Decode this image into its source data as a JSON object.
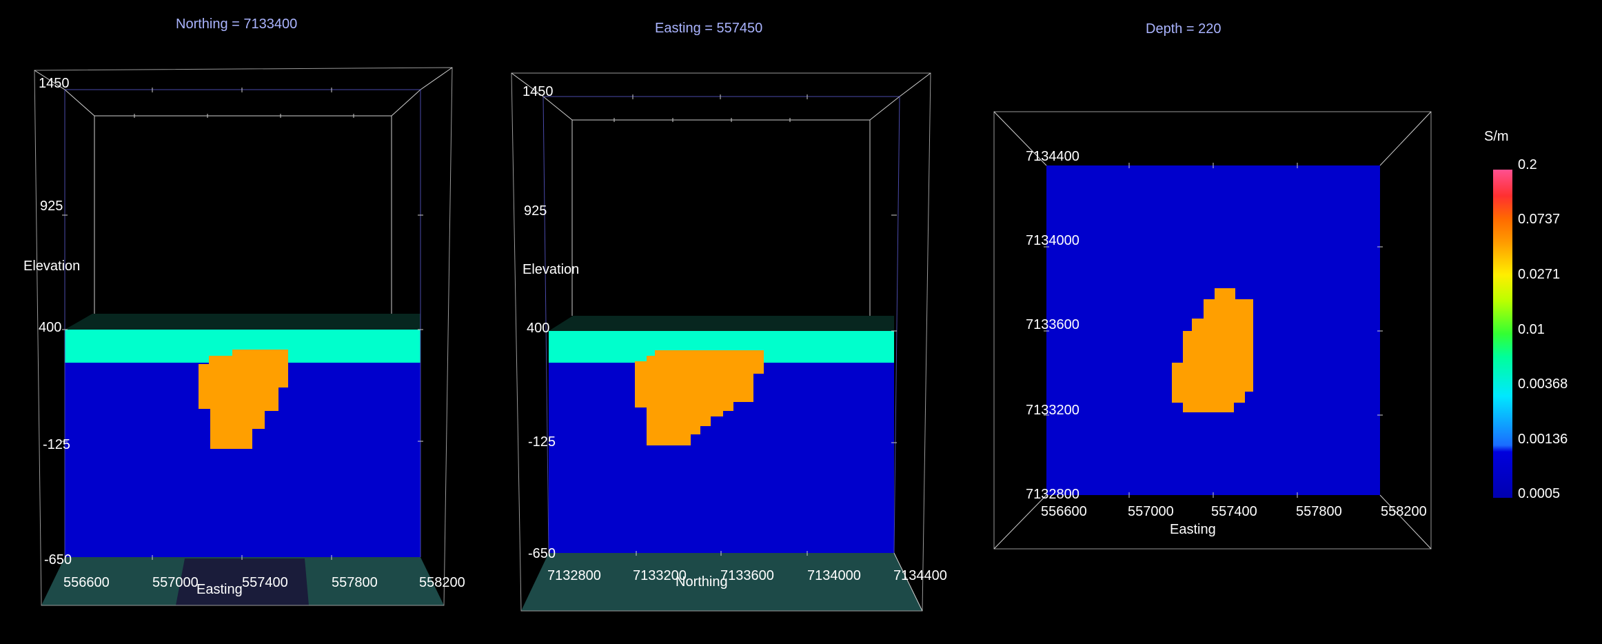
{
  "colors": {
    "background": "#000000",
    "cell_low": "#0000cc",
    "cell_surface": "#00ffcc",
    "cell_anomaly": "#ff9f00",
    "floor": "#1d4a48",
    "title_text": "#aab4ff"
  },
  "panel1": {
    "title": "Northing =  7133400",
    "elev_ticks": [
      "1450",
      "925",
      "400",
      "-125",
      "-650"
    ],
    "y_axis_label": "Elevation",
    "x_ticks": [
      "556600",
      "557000",
      "557400",
      "557800",
      "558200"
    ],
    "x_axis_label": "Easting"
  },
  "panel2": {
    "title": "Easting =  557450",
    "elev_ticks": [
      "1450",
      "925",
      "400",
      "-125",
      "-650"
    ],
    "y_axis_label": "Elevation",
    "x_ticks": [
      "7132800",
      "7133200",
      "7133600",
      "7134000",
      "7134400"
    ],
    "x_axis_label": "Northing"
  },
  "panel3": {
    "title": "Depth =  220",
    "y_ticks": [
      "7134400",
      "7134000",
      "7133600",
      "7133200",
      "7132800"
    ],
    "x_ticks": [
      "556600",
      "557000",
      "557400",
      "557800",
      "558200"
    ],
    "x_axis_label": "Easting"
  },
  "colorbar": {
    "unit": "S/m",
    "ticks": [
      "0.2",
      "0.0737",
      "0.0271",
      "0.01",
      "0.00368",
      "0.00136",
      "0.0005"
    ]
  }
}
